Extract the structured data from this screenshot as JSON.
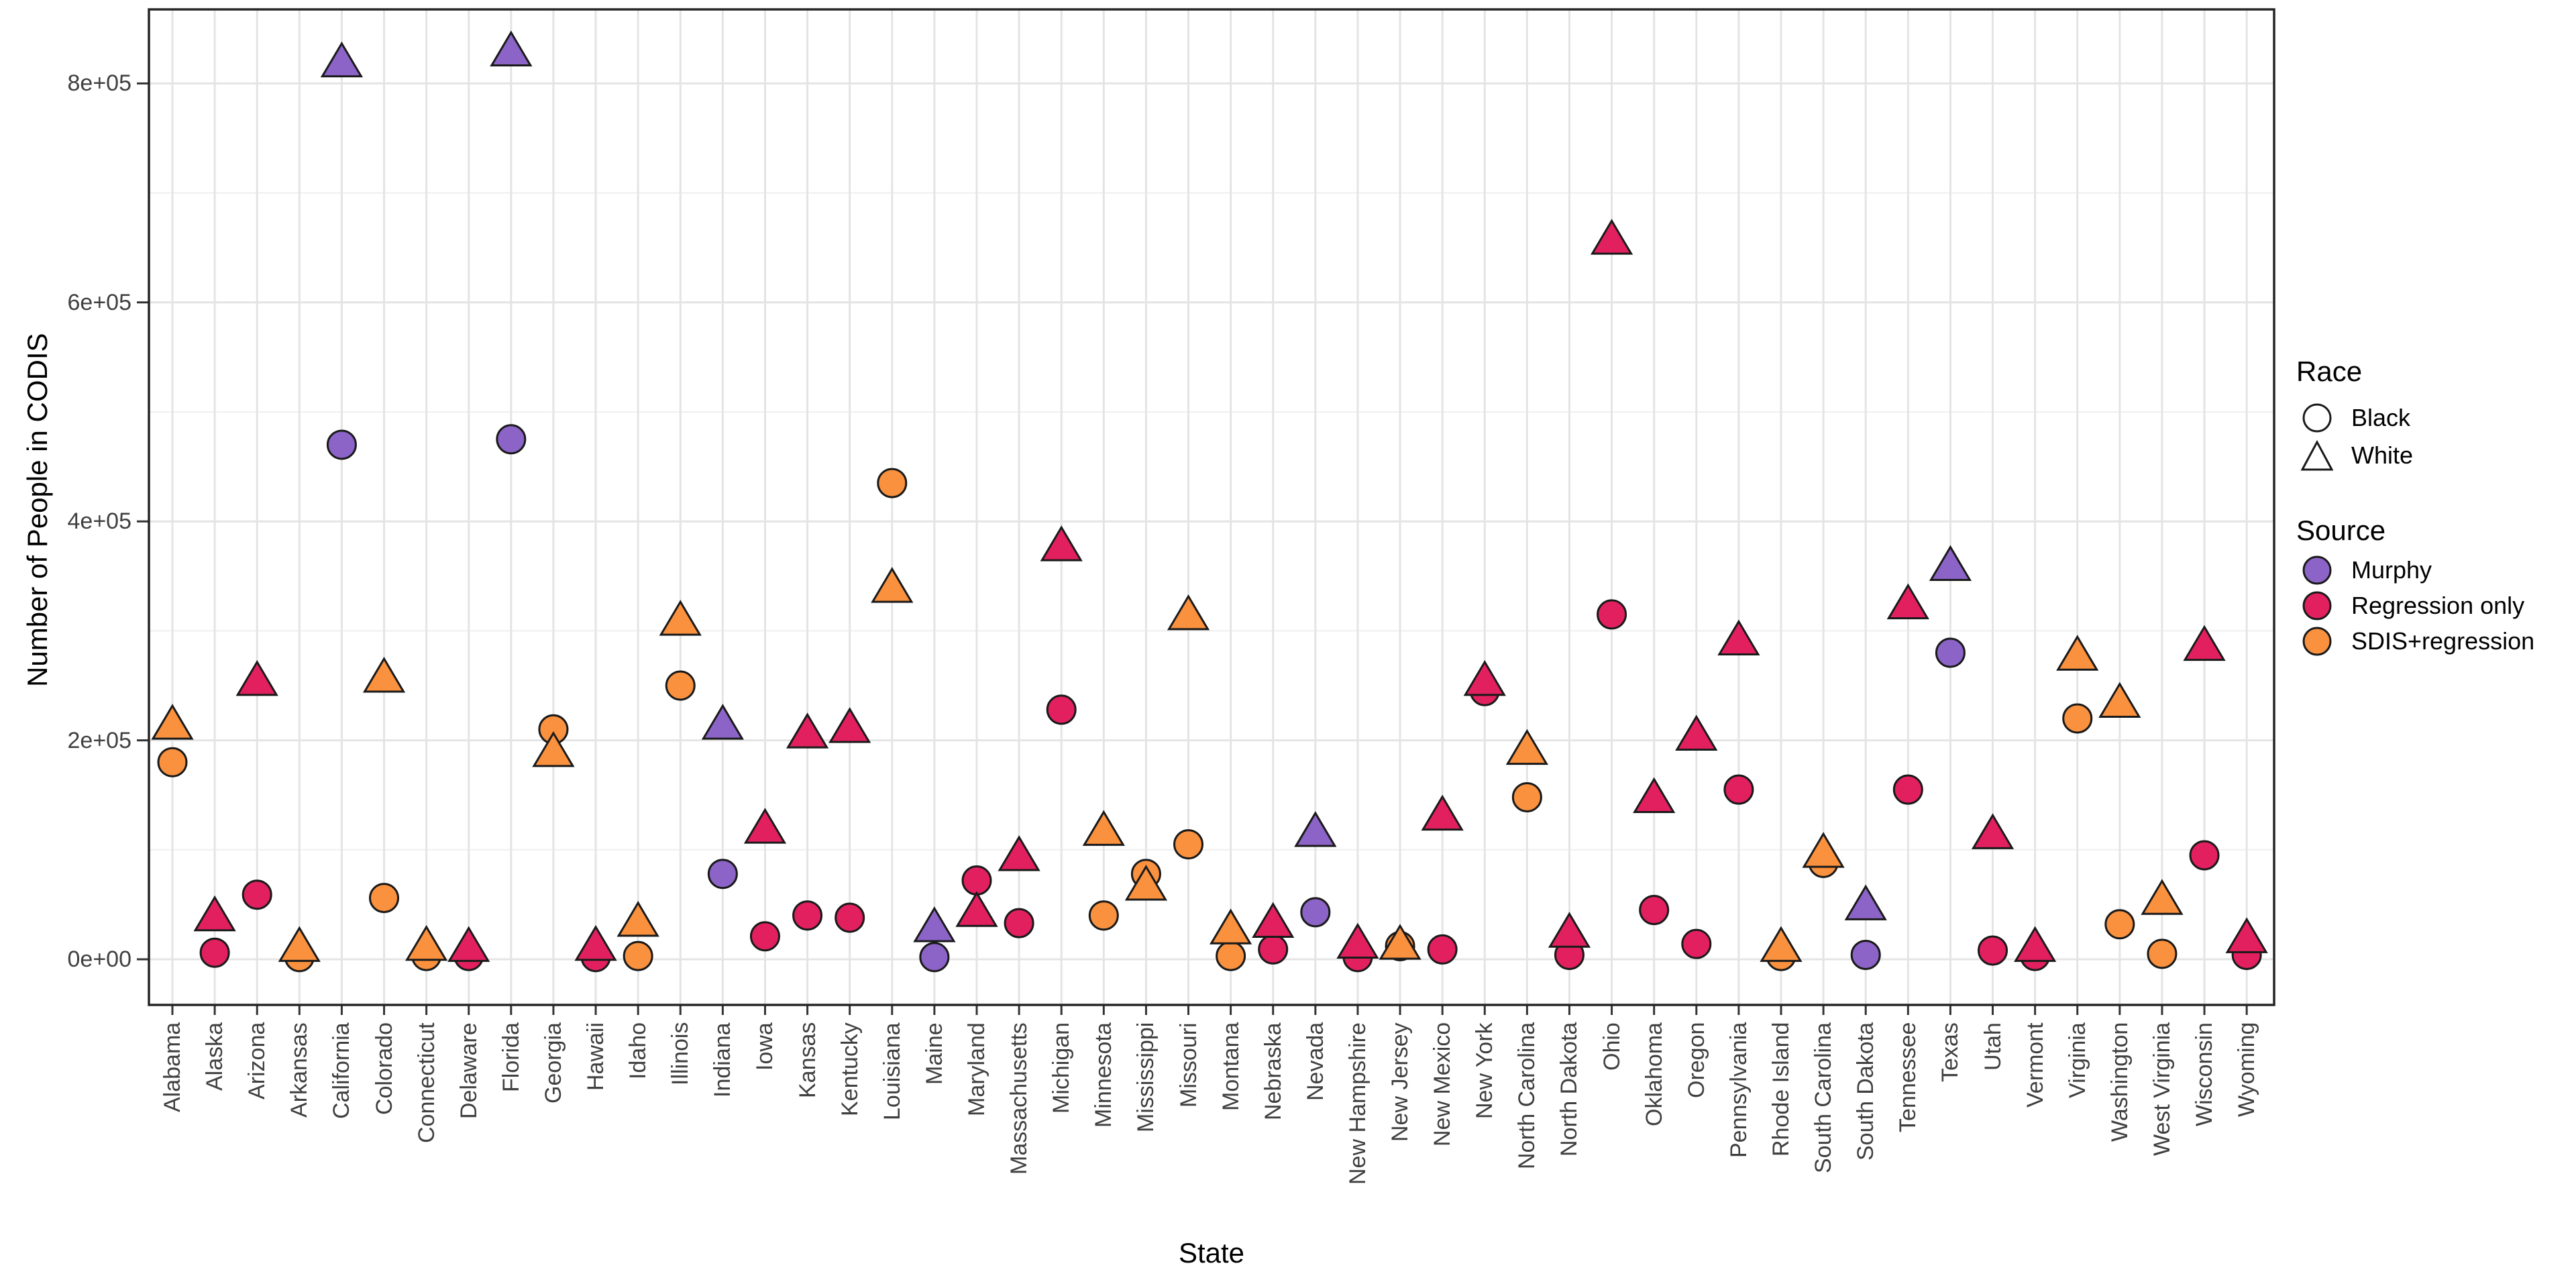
{
  "chart_data": {
    "type": "scatter",
    "title": "",
    "xlabel": "State",
    "ylabel": "Number of People in CODIS",
    "y_ticks": [
      "0e+00",
      "2e+05",
      "4e+05",
      "6e+05",
      "8e+05"
    ],
    "y_tick_values": [
      0,
      200000,
      400000,
      600000,
      800000
    ],
    "ylim": [
      0,
      872000
    ],
    "grid": "white panel, light gray major gridlines at every state and every 1e5, black panel border",
    "legend_position": "right",
    "shape_encoding": {
      "circle": "Black",
      "triangle": "White"
    },
    "legend": {
      "race_title": "Race",
      "race_items": [
        {
          "label": "Black",
          "shape": "circle"
        },
        {
          "label": "White",
          "shape": "triangle"
        }
      ],
      "source_title": "Source",
      "source_items": [
        {
          "label": "Murphy",
          "color_key": "murphy"
        },
        {
          "label": "Regression only",
          "color_key": "regression_only"
        },
        {
          "label": "SDIS+regression",
          "color_key": "sdis_regression"
        }
      ]
    },
    "states": [
      {
        "state": "Alabama",
        "source": "sdis_regression",
        "black": 180000,
        "white": 215000
      },
      {
        "state": "Alaska",
        "source": "regression_only",
        "black": 6000,
        "white": 40000
      },
      {
        "state": "Arizona",
        "source": "regression_only",
        "black": 59000,
        "white": 255000
      },
      {
        "state": "Arkansas",
        "source": "sdis_regression",
        "black": 2000,
        "white": 12000
      },
      {
        "state": "California",
        "source": "murphy",
        "black": 470000,
        "white": 820000
      },
      {
        "state": "Colorado",
        "source": "sdis_regression",
        "black": 56000,
        "white": 258000
      },
      {
        "state": "Connecticut",
        "source": "sdis_regression",
        "black": 3000,
        "white": 13000
      },
      {
        "state": "Delaware",
        "source": "regression_only",
        "black": 3000,
        "white": 12000
      },
      {
        "state": "Florida",
        "source": "murphy",
        "black": 475000,
        "white": 830000
      },
      {
        "state": "Georgia",
        "source": "sdis_regression",
        "black": 210000,
        "white": 190000
      },
      {
        "state": "Hawaii",
        "source": "regression_only",
        "black": 2000,
        "white": 13000
      },
      {
        "state": "Idaho",
        "source": "sdis_regression",
        "black": 3000,
        "white": 35000
      },
      {
        "state": "Illinois",
        "source": "sdis_regression",
        "black": 250000,
        "white": 310000
      },
      {
        "state": "Indiana",
        "source": "murphy",
        "black": 78000,
        "white": 215000
      },
      {
        "state": "Iowa",
        "source": "regression_only",
        "black": 21000,
        "white": 120000
      },
      {
        "state": "Kansas",
        "source": "regression_only",
        "black": 40000,
        "white": 207000
      },
      {
        "state": "Kentucky",
        "source": "regression_only",
        "black": 38000,
        "white": 212000
      },
      {
        "state": "Louisiana",
        "source": "sdis_regression",
        "black": 435000,
        "white": 340000
      },
      {
        "state": "Maine",
        "source": "murphy",
        "black": 2000,
        "white": 30000
      },
      {
        "state": "Maryland",
        "source": "regression_only",
        "black": 72000,
        "white": 44000
      },
      {
        "state": "Massachusetts",
        "source": "regression_only",
        "black": 33000,
        "white": 95000
      },
      {
        "state": "Michigan",
        "source": "regression_only",
        "black": 228000,
        "white": 378000
      },
      {
        "state": "Minnesota",
        "source": "sdis_regression",
        "black": 40000,
        "white": 118000
      },
      {
        "state": "Mississippi",
        "source": "sdis_regression",
        "black": 78000,
        "white": 68000
      },
      {
        "state": "Missouri",
        "source": "sdis_regression",
        "black": 105000,
        "white": 315000
      },
      {
        "state": "Montana",
        "source": "sdis_regression",
        "black": 3000,
        "white": 28000
      },
      {
        "state": "Nebraska",
        "source": "regression_only",
        "black": 9000,
        "white": 34000
      },
      {
        "state": "Nevada",
        "source": "murphy",
        "black": 43000,
        "white": 117000
      },
      {
        "state": "New Hampshire",
        "source": "regression_only",
        "black": 2000,
        "white": 15000
      },
      {
        "state": "New Jersey",
        "source": "sdis_regression",
        "black": 12000,
        "white": 14000
      },
      {
        "state": "New Mexico",
        "source": "regression_only",
        "black": 9000,
        "white": 132000
      },
      {
        "state": "New York",
        "source": "regression_only",
        "black": 245000,
        "white": 255000
      },
      {
        "state": "North Carolina",
        "source": "sdis_regression",
        "black": 148000,
        "white": 192000
      },
      {
        "state": "North Dakota",
        "source": "regression_only",
        "black": 4000,
        "white": 25000
      },
      {
        "state": "Ohio",
        "source": "regression_only",
        "black": 315000,
        "white": 658000
      },
      {
        "state": "Oklahoma",
        "source": "regression_only",
        "black": 45000,
        "white": 148000
      },
      {
        "state": "Oregon",
        "source": "regression_only",
        "black": 14000,
        "white": 205000
      },
      {
        "state": "Pennsylvania",
        "source": "regression_only",
        "black": 155000,
        "white": 292000
      },
      {
        "state": "Rhode Island",
        "source": "sdis_regression",
        "black": 3000,
        "white": 12000
      },
      {
        "state": "South Carolina",
        "source": "sdis_regression",
        "black": 88000,
        "white": 98000
      },
      {
        "state": "South Dakota",
        "source": "murphy",
        "black": 4000,
        "white": 50000
      },
      {
        "state": "Tennessee",
        "source": "regression_only",
        "black": 155000,
        "white": 325000
      },
      {
        "state": "Texas",
        "source": "murphy",
        "black": 280000,
        "white": 360000
      },
      {
        "state": "Utah",
        "source": "regression_only",
        "black": 8000,
        "white": 115000
      },
      {
        "state": "Vermont",
        "source": "regression_only",
        "black": 3000,
        "white": 12000
      },
      {
        "state": "Virginia",
        "source": "sdis_regression",
        "black": 220000,
        "white": 278000
      },
      {
        "state": "Washington",
        "source": "sdis_regression",
        "black": 32000,
        "white": 235000
      },
      {
        "state": "West Virginia",
        "source": "sdis_regression",
        "black": 5000,
        "white": 55000
      },
      {
        "state": "Wisconsin",
        "source": "regression_only",
        "black": 95000,
        "white": 287000
      },
      {
        "state": "Wyoming",
        "source": "regression_only",
        "black": 4000,
        "white": 20000
      }
    ]
  },
  "colors": {
    "murphy": "#8C63C7",
    "regression_only": "#E2205F",
    "sdis_regression": "#F9913E",
    "grid_major": "#E4E4E4",
    "grid_minor": "#EFEFEF",
    "panel_border": "#262626",
    "point_stroke": "#1A1A1A",
    "tick_text": "#404040"
  }
}
